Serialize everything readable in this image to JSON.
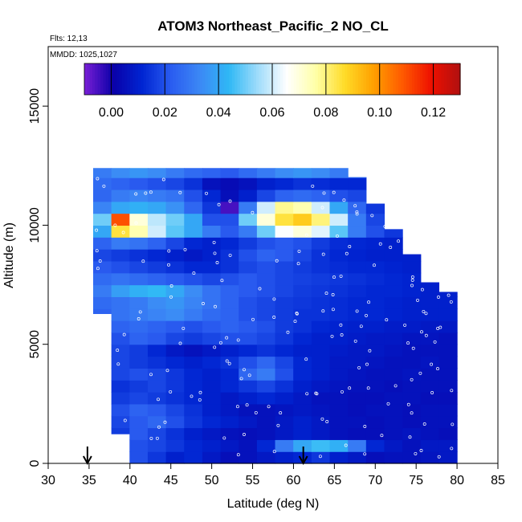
{
  "chart_data": {
    "type": "heatmap",
    "title": "ATOM3 Northeast_Pacific_2 NO_CL",
    "flights_note": "Flts: 12,13",
    "dates_note": "MMDD: 1025,1027",
    "xlabel": "Latitude (deg N)",
    "ylabel": "Altitude (m)",
    "xlim": [
      30,
      85
    ],
    "ylim": [
      0,
      17500
    ],
    "x_ticks": [
      "30",
      "35",
      "40",
      "45",
      "50",
      "55",
      "60",
      "65",
      "70",
      "75",
      "80",
      "85"
    ],
    "y_ticks": [
      "0",
      "5000",
      "10000",
      "15000"
    ],
    "colorbar": {
      "range": [
        -0.01,
        0.13
      ],
      "tick_labels": [
        "0.00",
        "0.02",
        "0.04",
        "0.06",
        "0.08",
        "0.10",
        "0.12"
      ],
      "colors": [
        "#7a1fd6",
        "#0a00a8",
        "#0025d2",
        "#2a5cf0",
        "#3c88f5",
        "#2fb8f5",
        "#9fdcfb",
        "#ffffff",
        "#ffffa8",
        "#ffdc28",
        "#ffa000",
        "#ff5a00",
        "#ee1000",
        "#b01010"
      ]
    },
    "markers": [
      {
        "latitude": 34.8,
        "symbol": "down-arrow"
      },
      {
        "latitude": 61.2,
        "symbol": "down-arrow"
      }
    ],
    "curtain": {
      "lat_start": 35.5,
      "lat_end": 80,
      "layer_height_m": 500,
      "profile_top_m": [
        [
          35.5,
          0
        ],
        [
          36,
          12400
        ],
        [
          38,
          12400
        ],
        [
          39,
          12400
        ],
        [
          62,
          12400
        ],
        [
          67,
          12400
        ],
        [
          69,
          11400
        ],
        [
          71,
          10400
        ],
        [
          74,
          9000
        ],
        [
          76,
          8000
        ],
        [
          77,
          7400
        ],
        [
          78,
          7200
        ],
        [
          80,
          7200
        ]
      ],
      "profile_bottom_m": [
        [
          35.5,
          10000
        ],
        [
          37,
          5000
        ],
        [
          38,
          2500
        ],
        [
          39,
          1000
        ],
        [
          39.5,
          300
        ],
        [
          40,
          0
        ],
        [
          80,
          0
        ]
      ],
      "layers": [
        {
          "alt_m": 0,
          "values": [
            0.012,
            0.018,
            0.02,
            0.015,
            0.01,
            0.012,
            0.008,
            0.005,
            0.006,
            0.008,
            0.01,
            0.012,
            0.015,
            0.01,
            0.008,
            0.005,
            0.006,
            0.006,
            0.007,
            0.008
          ]
        },
        {
          "alt_m": 500,
          "values": [
            0.015,
            0.018,
            0.02,
            0.018,
            0.015,
            0.012,
            0.01,
            0.008,
            0.006,
            0.012,
            0.03,
            0.04,
            0.045,
            0.042,
            0.03,
            0.012,
            0.008,
            0.006,
            0.008,
            0.008
          ]
        },
        {
          "alt_m": 1000,
          "values": [
            0.014,
            0.016,
            0.022,
            0.018,
            0.014,
            0.01,
            0.008,
            0.006,
            0.005,
            0.006,
            0.008,
            0.01,
            0.008,
            0.006,
            0.005,
            0.005,
            0.006,
            0.007,
            0.006,
            0.005
          ]
        },
        {
          "alt_m": 1500,
          "values": [
            0.015,
            0.018,
            0.022,
            0.025,
            0.02,
            0.015,
            0.012,
            0.01,
            0.008,
            0.006,
            0.008,
            0.01,
            0.008,
            0.006,
            0.006,
            0.005,
            0.006,
            0.005,
            0.006,
            0.006
          ]
        },
        {
          "alt_m": 2000,
          "values": [
            0.016,
            0.02,
            0.024,
            0.022,
            0.018,
            0.014,
            0.01,
            0.008,
            0.006,
            0.006,
            0.007,
            0.008,
            0.007,
            0.006,
            0.005,
            0.006,
            0.006,
            0.005,
            0.006,
            0.006
          ]
        },
        {
          "alt_m": 2500,
          "values": [
            0.014,
            0.016,
            0.018,
            0.016,
            0.014,
            0.012,
            0.01,
            0.008,
            0.01,
            0.012,
            0.01,
            0.008,
            0.006,
            0.006,
            0.005,
            0.005,
            0.006,
            0.006,
            0.005,
            0.005
          ]
        },
        {
          "alt_m": 3000,
          "values": [
            0.012,
            0.014,
            0.016,
            0.018,
            0.015,
            0.012,
            0.01,
            0.012,
            0.015,
            0.018,
            0.014,
            0.01,
            0.008,
            0.007,
            0.006,
            0.006,
            0.005,
            0.006,
            0.006,
            0.006
          ]
        },
        {
          "alt_m": 3500,
          "values": [
            0.015,
            0.018,
            0.02,
            0.018,
            0.015,
            0.012,
            0.01,
            0.012,
            0.025,
            0.03,
            0.02,
            0.012,
            0.01,
            0.008,
            0.007,
            0.006,
            0.006,
            0.007,
            0.006,
            0.006
          ]
        },
        {
          "alt_m": 4000,
          "values": [
            0.02,
            0.018,
            0.016,
            0.014,
            0.012,
            0.01,
            0.012,
            0.014,
            0.02,
            0.025,
            0.018,
            0.012,
            0.01,
            0.008,
            0.008,
            0.007,
            0.006,
            0.006,
            0.007,
            0.006
          ]
        },
        {
          "alt_m": 4500,
          "values": [
            0.015,
            0.018,
            0.016,
            0.012,
            0.008,
            0.006,
            0.008,
            0.01,
            0.012,
            0.014,
            0.012,
            0.01,
            0.01,
            0.009,
            0.008,
            0.008,
            0.007,
            0.006,
            0.006,
            0.006
          ]
        },
        {
          "alt_m": 5000,
          "values": [
            0.018,
            0.02,
            0.024,
            0.022,
            0.018,
            0.016,
            0.018,
            0.02,
            0.02,
            0.018,
            0.015,
            0.012,
            0.01,
            0.01,
            0.009,
            0.008,
            0.008,
            0.007,
            0.007,
            0.006
          ]
        },
        {
          "alt_m": 5500,
          "values": [
            0.022,
            0.024,
            0.026,
            0.024,
            0.022,
            0.02,
            0.022,
            0.024,
            0.022,
            0.02,
            0.016,
            0.014,
            0.012,
            0.011,
            0.01,
            0.01,
            0.009,
            0.009,
            0.008,
            0.008
          ]
        },
        {
          "alt_m": 6000,
          "values": [
            0.024,
            0.028,
            0.03,
            0.032,
            0.034,
            0.03,
            0.026,
            0.024,
            0.02,
            0.018,
            0.016,
            0.014,
            0.014,
            0.013,
            0.012,
            0.012,
            0.011,
            0.01,
            0.01,
            0.01
          ]
        },
        {
          "alt_m": 6500,
          "values": [
            0.026,
            0.028,
            0.03,
            0.034,
            0.036,
            0.032,
            0.028,
            0.024,
            0.02,
            0.018,
            0.016,
            0.015,
            0.014,
            0.013,
            0.012,
            0.012,
            0.011,
            0.01,
            0.01,
            0.01
          ]
        },
        {
          "alt_m": 7000,
          "values": [
            0.03,
            0.038,
            0.042,
            0.044,
            0.04,
            0.034,
            0.028,
            0.024,
            0.022,
            0.02,
            0.018,
            0.016,
            0.015,
            0.014,
            0.013,
            0.012,
            0.012,
            0.011,
            0.01,
            0.01
          ]
        },
        {
          "alt_m": 7500,
          "values": [
            0.026,
            0.028,
            0.026,
            0.024,
            0.022,
            0.02,
            0.018,
            0.02,
            0.022,
            0.02,
            0.018,
            0.017,
            0.016,
            0.015,
            0.014,
            0.013,
            0.012,
            0.011,
            0.01,
            0.01
          ]
        },
        {
          "alt_m": 8000,
          "values": [
            0.022,
            0.02,
            0.018,
            0.016,
            0.014,
            0.012,
            0.012,
            0.014,
            0.018,
            0.02,
            0.018,
            0.016,
            0.014,
            0.013,
            0.012,
            0.012,
            0.011,
            0.01,
            0.01,
            0.01
          ]
        },
        {
          "alt_m": 8500,
          "values": [
            0.018,
            0.016,
            0.014,
            0.012,
            0.01,
            0.008,
            0.01,
            0.014,
            0.02,
            0.024,
            0.022,
            0.018,
            0.014,
            0.012,
            0.011,
            0.01,
            0.01,
            0.01,
            0.01,
            0.01
          ]
        },
        {
          "alt_m": 9000,
          "values": [
            0.024,
            0.03,
            0.028,
            0.024,
            0.018,
            0.012,
            0.01,
            0.012,
            0.016,
            0.02,
            0.022,
            0.02,
            0.016,
            0.013,
            0.012,
            0.011,
            0.01,
            0.01,
            0.01,
            0.01
          ]
        },
        {
          "alt_m": 9500,
          "values": [
            0.04,
            0.085,
            0.075,
            0.06,
            0.048,
            0.04,
            0.03,
            0.022,
            0.03,
            0.05,
            0.065,
            0.07,
            0.062,
            0.048,
            0.03,
            0.02,
            0.015,
            0.012,
            0.01,
            0.01
          ]
        },
        {
          "alt_m": 10000,
          "values": [
            0.05,
            0.11,
            0.07,
            0.058,
            0.05,
            0.04,
            0.02,
            0.02,
            0.05,
            0.07,
            0.085,
            0.09,
            0.08,
            0.06,
            0.03,
            0.018,
            0.012,
            0.01,
            0.01,
            0.01
          ]
        },
        {
          "alt_m": 10500,
          "values": [
            0.032,
            0.04,
            0.042,
            0.04,
            0.035,
            0.025,
            0.015,
            -0.005,
            0.03,
            0.06,
            0.078,
            0.075,
            0.06,
            0.04,
            0.025,
            0.015,
            0.01,
            0.01,
            0.01,
            0.01
          ]
        },
        {
          "alt_m": 11000,
          "values": [
            0.025,
            0.03,
            0.032,
            0.03,
            0.028,
            0.02,
            0.012,
            0.005,
            0.01,
            0.018,
            0.024,
            0.026,
            0.024,
            0.02,
            0.018,
            0.015,
            0.012,
            0.01,
            0.01,
            0.01
          ]
        },
        {
          "alt_m": 11500,
          "values": [
            0.026,
            0.024,
            0.022,
            0.02,
            0.018,
            0.014,
            0.006,
            0.004,
            0.006,
            0.01,
            0.012,
            0.014,
            0.013,
            0.012,
            0.012,
            0.011,
            0.01,
            0.01,
            0.01,
            0.01
          ]
        },
        {
          "alt_m": 12000,
          "values": [
            0.03,
            0.034,
            0.036,
            0.034,
            0.03,
            0.026,
            0.024,
            0.022,
            0.026,
            0.03,
            0.034,
            0.036,
            0.034,
            0.03,
            0.026,
            0.02,
            0.016,
            0.014,
            0.012,
            0.012
          ]
        }
      ]
    }
  }
}
